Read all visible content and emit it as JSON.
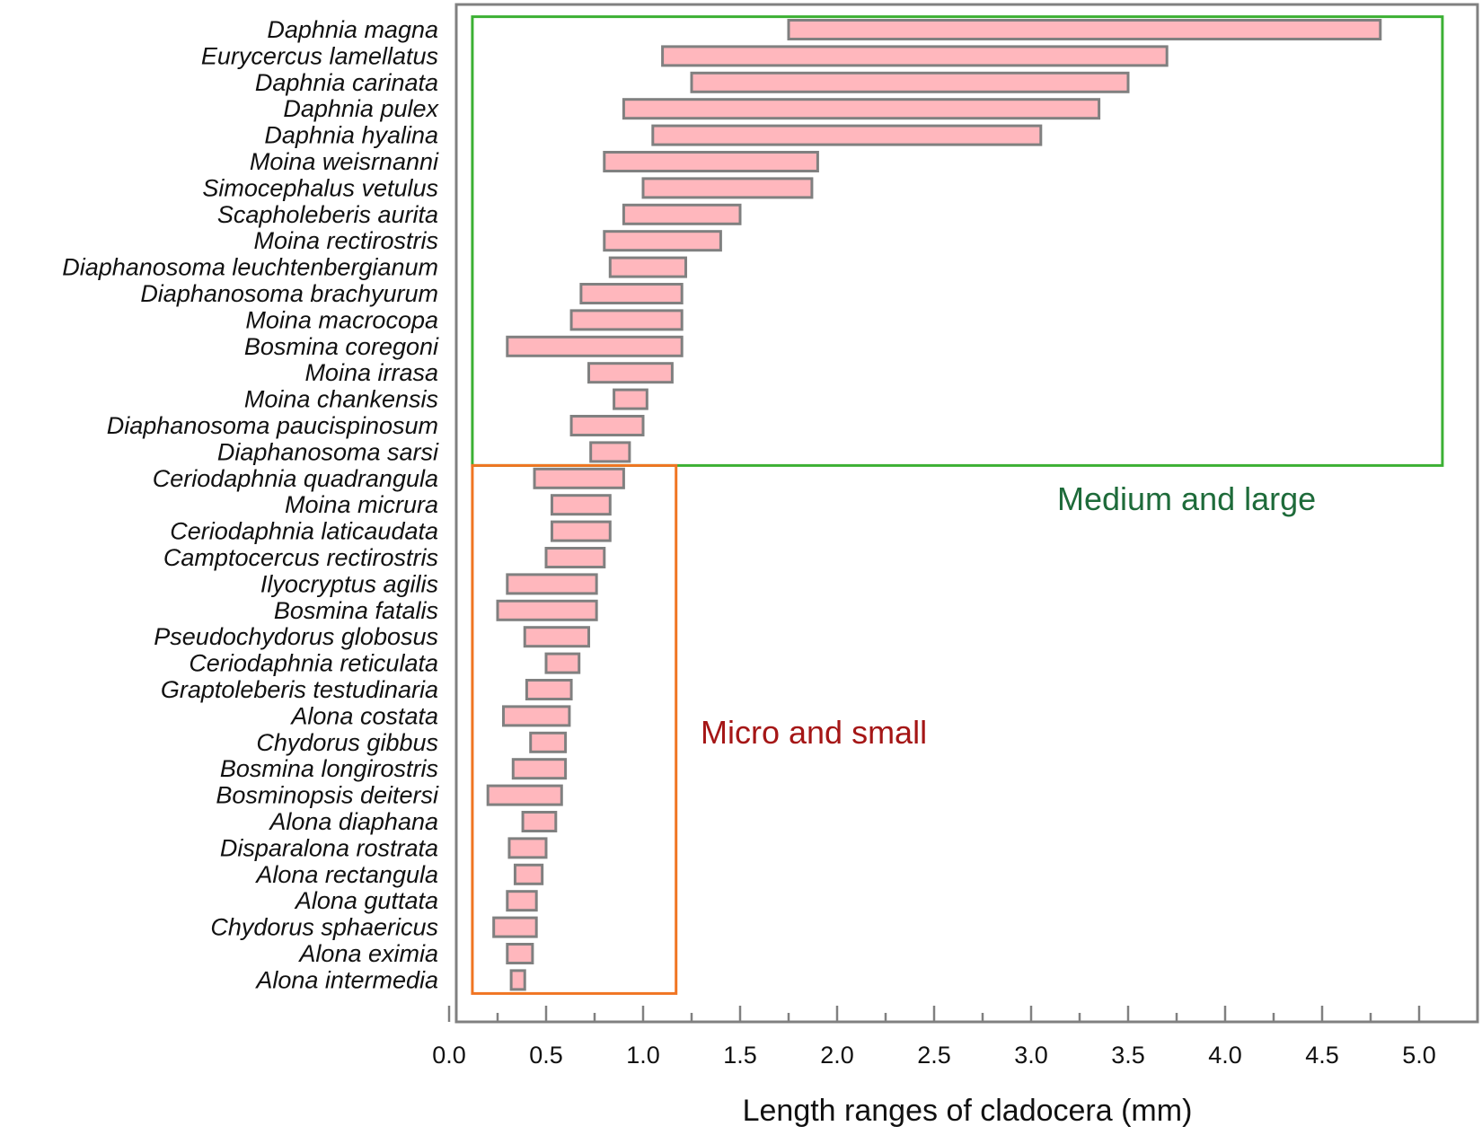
{
  "chart_data": {
    "type": "bar",
    "orientation": "horizontal",
    "style": "floating-range",
    "xlabel": "Length ranges of cladocera (mm)",
    "xlim": [
      0,
      5.25
    ],
    "xticks": [
      "0.0",
      "0.5",
      "1.0",
      "1.5",
      "2.0",
      "2.5",
      "3.0",
      "3.5",
      "4.0",
      "4.5",
      "5.0"
    ],
    "xtick_values": [
      0,
      0.5,
      1.0,
      1.5,
      2.0,
      2.5,
      3.0,
      3.5,
      4.0,
      4.5,
      5.0
    ],
    "grid": false,
    "legend": "none",
    "colors": {
      "bar_fill": "#ffb7bd",
      "bar_edge": "#808080",
      "axis": "#808080",
      "medium_large_box": "#3cb034",
      "medium_large_text": "#1e6b3a",
      "micro_small_box": "#f07522",
      "micro_small_text": "#a51616"
    },
    "species": [
      {
        "name": "Daphnia magna",
        "min": 1.75,
        "max": 4.8
      },
      {
        "name": "Eurycercus lamellatus",
        "min": 1.1,
        "max": 3.7
      },
      {
        "name": "Daphnia carinata",
        "min": 1.25,
        "max": 3.5
      },
      {
        "name": "Daphnia pulex",
        "min": 0.9,
        "max": 3.35
      },
      {
        "name": "Daphnia hyalina",
        "min": 1.05,
        "max": 3.05
      },
      {
        "name": "Moina weisrnanni",
        "min": 0.8,
        "max": 1.9
      },
      {
        "name": "Simocephalus vetulus",
        "min": 1.0,
        "max": 1.87
      },
      {
        "name": "Scapholeberis aurita",
        "min": 0.9,
        "max": 1.5
      },
      {
        "name": "Moina rectirostris",
        "min": 0.8,
        "max": 1.4
      },
      {
        "name": "Diaphanosoma leuchtenbergianum",
        "min": 0.83,
        "max": 1.22
      },
      {
        "name": "Diaphanosoma brachyurum",
        "min": 0.68,
        "max": 1.2
      },
      {
        "name": "Moina macrocopa",
        "min": 0.63,
        "max": 1.2
      },
      {
        "name": "Bosmina coregoni",
        "min": 0.3,
        "max": 1.2
      },
      {
        "name": "Moina irrasa",
        "min": 0.72,
        "max": 1.15
      },
      {
        "name": "Moina chankensis",
        "min": 0.85,
        "max": 1.02
      },
      {
        "name": "Diaphanosoma paucispinosum",
        "min": 0.63,
        "max": 1.0
      },
      {
        "name": "Diaphanosoma sarsi",
        "min": 0.73,
        "max": 0.93
      },
      {
        "name": "Ceriodaphnia quadrangula",
        "min": 0.44,
        "max": 0.9
      },
      {
        "name": "Moina micrura",
        "min": 0.53,
        "max": 0.83
      },
      {
        "name": "Ceriodaphnia laticaudata",
        "min": 0.53,
        "max": 0.83
      },
      {
        "name": "Camptocercus rectirostris",
        "min": 0.5,
        "max": 0.8
      },
      {
        "name": "Ilyocryptus agilis",
        "min": 0.3,
        "max": 0.76
      },
      {
        "name": "Bosmina fatalis",
        "min": 0.25,
        "max": 0.76
      },
      {
        "name": "Pseudochydorus globosus",
        "min": 0.39,
        "max": 0.72
      },
      {
        "name": "Ceriodaphnia reticulata",
        "min": 0.5,
        "max": 0.67
      },
      {
        "name": "Graptoleberis testudinaria",
        "min": 0.4,
        "max": 0.63
      },
      {
        "name": "Alona costata",
        "min": 0.28,
        "max": 0.62
      },
      {
        "name": "Chydorus gibbus",
        "min": 0.42,
        "max": 0.6
      },
      {
        "name": "Bosmina longirostris",
        "min": 0.33,
        "max": 0.6
      },
      {
        "name": "Bosminopsis deitersi",
        "min": 0.2,
        "max": 0.58
      },
      {
        "name": "Alona diaphana",
        "min": 0.38,
        "max": 0.55
      },
      {
        "name": "Disparalona rostrata",
        "min": 0.31,
        "max": 0.5
      },
      {
        "name": "Alona rectangula",
        "min": 0.34,
        "max": 0.48
      },
      {
        "name": "Alona guttata",
        "min": 0.3,
        "max": 0.45
      },
      {
        "name": "Chydorus sphaericus",
        "min": 0.23,
        "max": 0.45
      },
      {
        "name": "Alona eximia",
        "min": 0.3,
        "max": 0.43
      },
      {
        "name": "Alona intermedia",
        "min": 0.32,
        "max": 0.39
      }
    ],
    "groups": [
      {
        "label": "Medium and large",
        "first_species": 0,
        "last_species": 16,
        "x_range": [
          0.12,
          5.12
        ]
      },
      {
        "label": "Micro and small",
        "first_species": 17,
        "last_species": 36,
        "x_range": [
          0.12,
          1.17
        ]
      }
    ]
  }
}
